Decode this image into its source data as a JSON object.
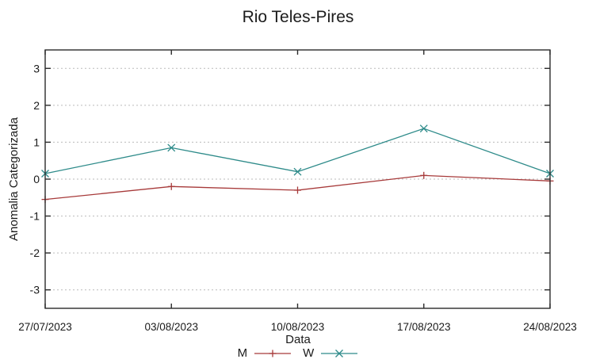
{
  "chart_data": {
    "type": "line",
    "title": "Rio Teles-Pires",
    "xlabel": "Data",
    "ylabel": "Anomalia Categorizada",
    "x_tick_labels": [
      "27/07/2023",
      "03/08/2023",
      "10/08/2023",
      "17/08/2023",
      "24/08/2023"
    ],
    "y_ticks": [
      3,
      2,
      1,
      0,
      -1,
      -2,
      -3
    ],
    "ylim": [
      -3.5,
      3.5
    ],
    "grid": "horizontal-dotted",
    "legend_position": "bottom-center",
    "series": [
      {
        "name": "M",
        "marker": "plus",
        "color": "#a73a3a",
        "values": [
          -0.55,
          -0.2,
          -0.3,
          0.1,
          -0.05
        ]
      },
      {
        "name": "W",
        "marker": "cross",
        "color": "#2e8b8a",
        "values": [
          0.15,
          0.85,
          0.2,
          1.37,
          0.15
        ]
      }
    ],
    "colors": {
      "background": "#ffffff",
      "axis": "#2b2b2b",
      "grid": "#bbbbbb",
      "text": "#1a1a1a"
    }
  }
}
